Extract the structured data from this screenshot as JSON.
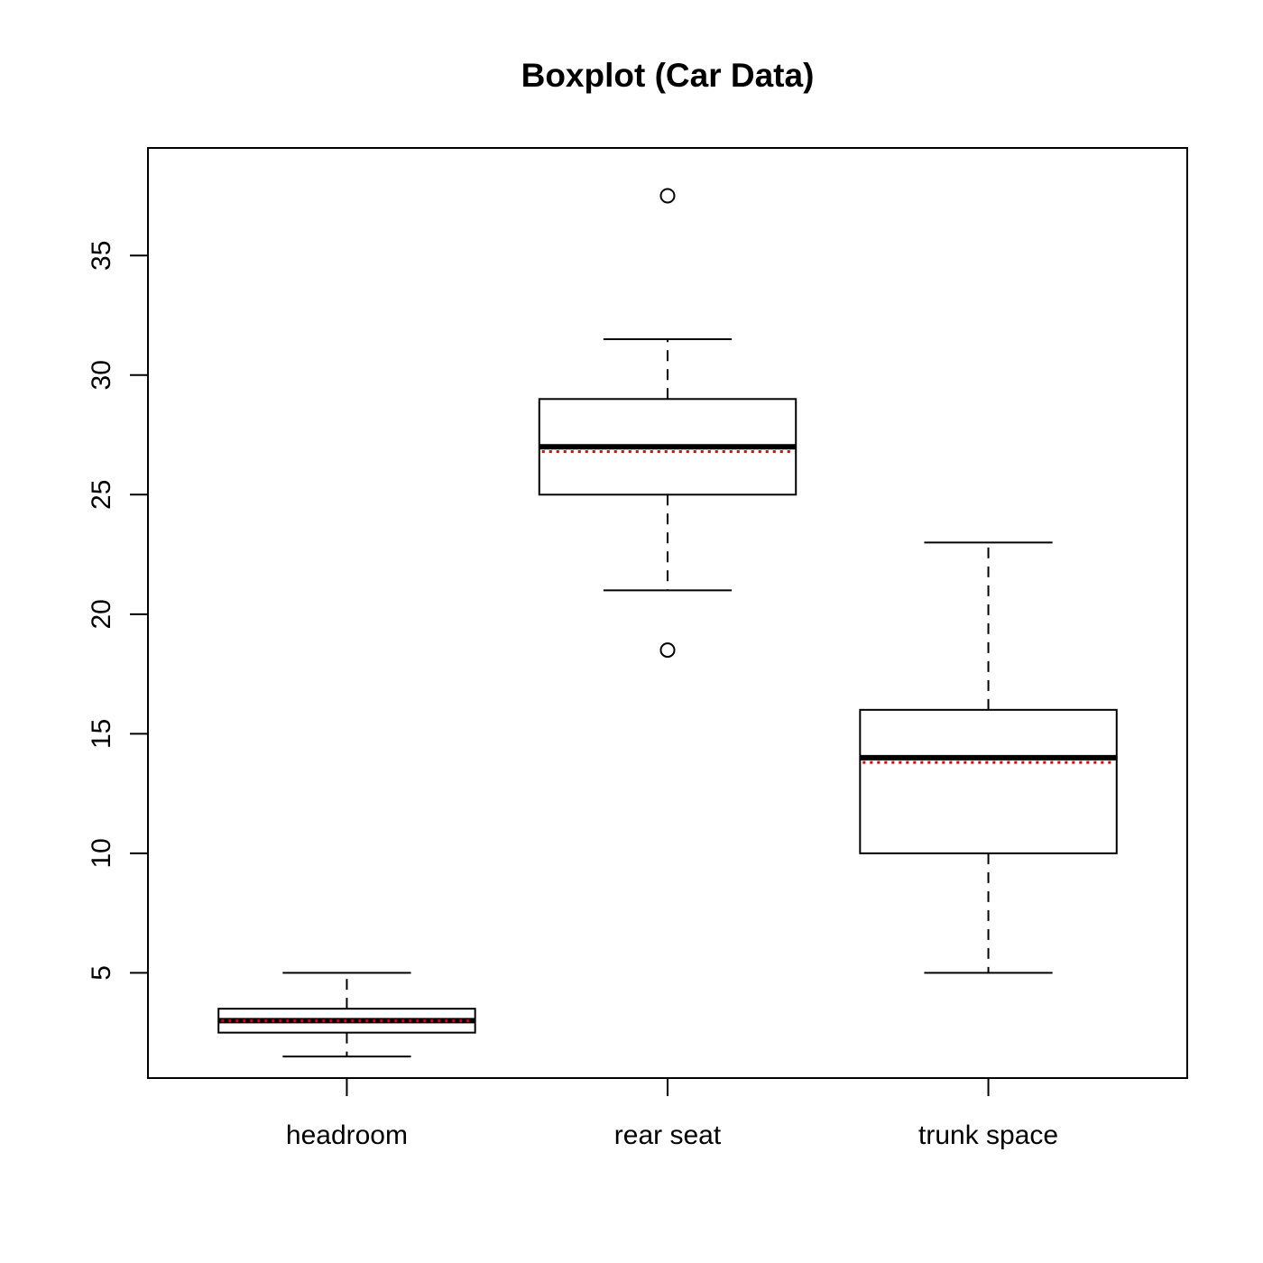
{
  "chart_data": {
    "type": "boxplot",
    "title": "Boxplot (Car Data)",
    "xlabel": "",
    "ylabel": "",
    "ylim": [
      0.6,
      39.5
    ],
    "yticks": [
      5,
      10,
      15,
      20,
      25,
      30,
      35
    ],
    "grid": false,
    "mean_color": "#e00000",
    "categories": [
      "headroom",
      "rear seat",
      "trunk space"
    ],
    "boxes": [
      {
        "name": "headroom",
        "whisker_low": 1.5,
        "q1": 2.5,
        "median": 3.0,
        "mean": 3.0,
        "q3": 3.5,
        "whisker_high": 5.0,
        "outliers": []
      },
      {
        "name": "rear seat",
        "whisker_low": 21.0,
        "q1": 25.0,
        "median": 27.0,
        "mean": 26.8,
        "q3": 29.0,
        "whisker_high": 31.5,
        "outliers": [
          18.5,
          37.5
        ]
      },
      {
        "name": "trunk space",
        "whisker_low": 5.0,
        "q1": 10.0,
        "median": 14.0,
        "mean": 13.8,
        "q3": 16.0,
        "whisker_high": 23.0,
        "outliers": []
      }
    ]
  }
}
